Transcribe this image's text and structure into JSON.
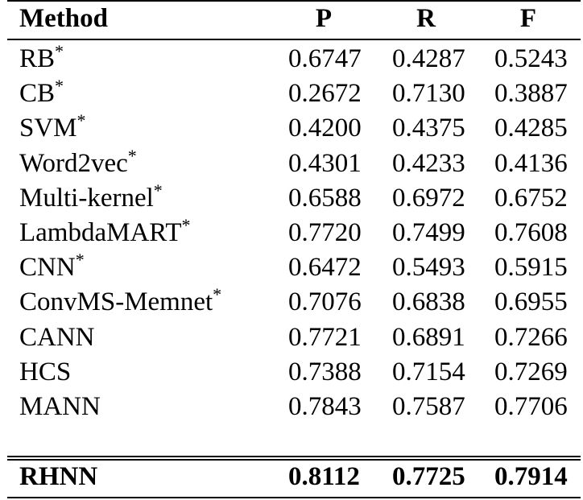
{
  "table": {
    "headers": {
      "method": "Method",
      "p": "P",
      "r": "R",
      "f": "F"
    },
    "rows": [
      {
        "method": "RB",
        "mark": "*",
        "p": "0.6747",
        "r": "0.4287",
        "f": "0.5243"
      },
      {
        "method": "CB",
        "mark": "*",
        "p": "0.2672",
        "r": "0.7130",
        "f": "0.3887"
      },
      {
        "method": "SVM",
        "mark": "*",
        "p": "0.4200",
        "r": "0.4375",
        "f": "0.4285"
      },
      {
        "method": "Word2vec",
        "mark": "*",
        "p": "0.4301",
        "r": "0.4233",
        "f": "0.4136"
      },
      {
        "method": "Multi-kernel",
        "mark": "*",
        "p": "0.6588",
        "r": "0.6972",
        "f": "0.6752"
      },
      {
        "method": "LambdaMART",
        "mark": "*",
        "p": "0.7720",
        "r": "0.7499",
        "f": "0.7608"
      },
      {
        "method": "CNN",
        "mark": "*",
        "p": "0.6472",
        "r": "0.5493",
        "f": "0.5915"
      },
      {
        "method": "ConvMS-Memnet",
        "mark": "*",
        "p": "0.7076",
        "r": "0.6838",
        "f": "0.6955"
      },
      {
        "method": "CANN",
        "mark": "",
        "p": "0.7721",
        "r": "0.6891",
        "f": "0.7266"
      },
      {
        "method": "HCS",
        "mark": "",
        "p": "0.7388",
        "r": "0.7154",
        "f": "0.7269"
      },
      {
        "method": "MANN",
        "mark": "",
        "p": "0.7843",
        "r": "0.7587",
        "f": "0.7706"
      }
    ],
    "final_row": {
      "method": "RHNN",
      "p": "0.8112",
      "r": "0.7725",
      "f": "0.7914"
    }
  }
}
